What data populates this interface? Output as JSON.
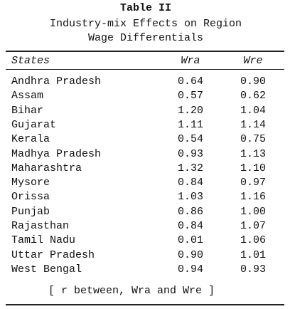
{
  "title": "Table II",
  "subtitle": [
    "Industry-mix Effects on Region",
    "Wage Differentials"
  ],
  "table": {
    "header": [
      "States",
      "Wra",
      "Wre"
    ],
    "rows": [
      [
        "Andhra Pradesh",
        "0.64",
        "0.90"
      ],
      [
        "Assam",
        "0.57",
        "0.62"
      ],
      [
        "Bihar",
        "1.20",
        "1.04"
      ],
      [
        "Gujarat",
        "1.11",
        "1.14"
      ],
      [
        "Kerala",
        "0.54",
        "0.75"
      ],
      [
        "Madhya Pradesh",
        "0.93",
        "1.13"
      ],
      [
        "Maharashtra",
        "1.32",
        "1.10"
      ],
      [
        "Mysore",
        "0.84",
        "0.97"
      ],
      [
        "Orissa",
        "1.03",
        "1.16"
      ],
      [
        "Punjab",
        "0.86",
        "1.00"
      ],
      [
        "Rajasthan",
        "0.84",
        "1.07"
      ],
      [
        "Tamil Nadu",
        "0.01",
        "1.06"
      ],
      [
        "Uttar Pradesh",
        "0.90",
        "1.01"
      ],
      [
        "West Bengal",
        "0.94",
        "0.93"
      ]
    ]
  },
  "footer": "[ r between, Wra and Wre ]"
}
